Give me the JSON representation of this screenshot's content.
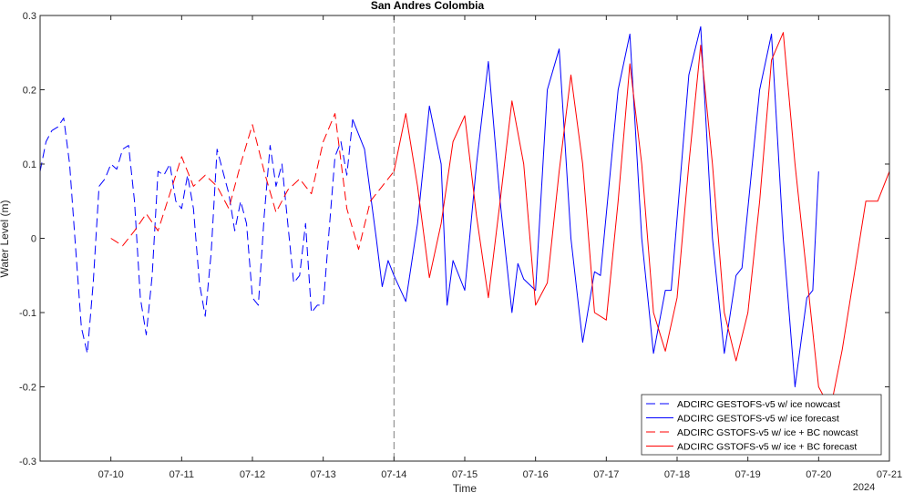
{
  "chart_data": {
    "type": "line",
    "title": "San Andres Colombia",
    "xlabel": "Time",
    "ylabel": "Water Level (m)",
    "year_label": "2024",
    "xlim": [
      "2024-07-09T00:00",
      "2024-07-21T00:00"
    ],
    "ylim": [
      -0.3,
      0.3
    ],
    "x_ticks": [
      "07-10",
      "07-11",
      "07-12",
      "07-13",
      "07-14",
      "07-15",
      "07-16",
      "07-17",
      "07-18",
      "07-19",
      "07-20",
      "07-21"
    ],
    "y_ticks": [
      "-0.3",
      "-0.2",
      "-0.1",
      "0",
      "0.1",
      "0.2",
      "0.3"
    ],
    "y_tick_values": [
      -0.3,
      -0.2,
      -0.1,
      0,
      0.1,
      0.2,
      0.3
    ],
    "grid": false,
    "legend_position": "bottom-right",
    "vertical_line_x": "2024-07-14T00:00",
    "colors": {
      "blue": "#0000ff",
      "red": "#ff0000",
      "axis": "#262626",
      "divider": "#7f7f7f"
    },
    "series": [
      {
        "name": "ADCIRC GESTOFS-v5 w/ ice nowcast",
        "color": "#0000ff",
        "style": "dashed",
        "points": [
          [
            "2024-07-09T00:00",
            0.09
          ],
          [
            "2024-07-09T02:00",
            0.13
          ],
          [
            "2024-07-09T04:00",
            0.145
          ],
          [
            "2024-07-09T06:00",
            0.15
          ],
          [
            "2024-07-09T08:00",
            0.162
          ],
          [
            "2024-07-09T10:00",
            0.1
          ],
          [
            "2024-07-09T12:00",
            -0.01
          ],
          [
            "2024-07-09T14:00",
            -0.12
          ],
          [
            "2024-07-09T16:00",
            -0.155
          ],
          [
            "2024-07-09T18:00",
            -0.06
          ],
          [
            "2024-07-09T20:00",
            0.07
          ],
          [
            "2024-07-09T22:00",
            0.08
          ],
          [
            "2024-07-10T00:00",
            0.1
          ],
          [
            "2024-07-10T02:00",
            0.093
          ],
          [
            "2024-07-10T04:00",
            0.12
          ],
          [
            "2024-07-10T06:00",
            0.125
          ],
          [
            "2024-07-10T08:00",
            0.05
          ],
          [
            "2024-07-10T10:00",
            -0.08
          ],
          [
            "2024-07-10T12:00",
            -0.13
          ],
          [
            "2024-07-10T14:00",
            -0.05
          ],
          [
            "2024-07-10T16:00",
            0.09
          ],
          [
            "2024-07-10T18:00",
            0.085
          ],
          [
            "2024-07-10T20:00",
            0.1
          ],
          [
            "2024-07-10T22:00",
            0.05
          ],
          [
            "2024-07-11T00:00",
            0.04
          ],
          [
            "2024-07-11T02:00",
            0.085
          ],
          [
            "2024-07-11T04:00",
            0.04
          ],
          [
            "2024-07-11T06:00",
            -0.06
          ],
          [
            "2024-07-11T08:00",
            -0.105
          ],
          [
            "2024-07-11T10:00",
            -0.02
          ],
          [
            "2024-07-11T12:00",
            0.12
          ],
          [
            "2024-07-11T14:00",
            0.09
          ],
          [
            "2024-07-11T16:00",
            0.06
          ],
          [
            "2024-07-11T18:00",
            0.01
          ],
          [
            "2024-07-11T20:00",
            0.05
          ],
          [
            "2024-07-11T22:00",
            0.02
          ],
          [
            "2024-07-12T00:00",
            -0.08
          ],
          [
            "2024-07-12T02:00",
            -0.09
          ],
          [
            "2024-07-12T04:00",
            0.03
          ],
          [
            "2024-07-12T06:00",
            0.125
          ],
          [
            "2024-07-12T08:00",
            0.07
          ],
          [
            "2024-07-12T10:00",
            0.1
          ],
          [
            "2024-07-12T12:00",
            0.02
          ],
          [
            "2024-07-12T14:00",
            -0.06
          ],
          [
            "2024-07-12T16:00",
            -0.05
          ],
          [
            "2024-07-12T18:00",
            0.02
          ],
          [
            "2024-07-12T20:00",
            -0.1
          ],
          [
            "2024-07-12T22:00",
            -0.09
          ],
          [
            "2024-07-13T00:00",
            -0.09
          ],
          [
            "2024-07-13T02:00",
            0.01
          ],
          [
            "2024-07-13T04:00",
            0.11
          ],
          [
            "2024-07-13T06:00",
            0.13
          ],
          [
            "2024-07-13T08:00",
            0.085
          ],
          [
            "2024-07-13T10:00",
            0.16
          ]
        ]
      },
      {
        "name": "ADCIRC GESTOFS-v5 w/ ice forecast",
        "color": "#0000ff",
        "style": "solid",
        "points": [
          [
            "2024-07-13T10:00",
            0.16
          ],
          [
            "2024-07-13T14:00",
            0.12
          ],
          [
            "2024-07-13T18:00",
            0.0
          ],
          [
            "2024-07-13T20:00",
            -0.065
          ],
          [
            "2024-07-13T22:00",
            -0.03
          ],
          [
            "2024-07-14T00:00",
            -0.05
          ],
          [
            "2024-07-14T04:00",
            -0.085
          ],
          [
            "2024-07-14T08:00",
            0.02
          ],
          [
            "2024-07-14T12:00",
            0.178
          ],
          [
            "2024-07-14T16:00",
            0.1
          ],
          [
            "2024-07-14T18:00",
            -0.09
          ],
          [
            "2024-07-14T20:00",
            -0.03
          ],
          [
            "2024-07-15T00:00",
            -0.07
          ],
          [
            "2024-07-15T04:00",
            0.1
          ],
          [
            "2024-07-15T08:00",
            0.238
          ],
          [
            "2024-07-15T12:00",
            0.05
          ],
          [
            "2024-07-15T16:00",
            -0.1
          ],
          [
            "2024-07-15T18:00",
            -0.034
          ],
          [
            "2024-07-15T20:00",
            -0.055
          ],
          [
            "2024-07-16T00:00",
            -0.07
          ],
          [
            "2024-07-16T04:00",
            0.2
          ],
          [
            "2024-07-16T08:00",
            0.255
          ],
          [
            "2024-07-16T12:00",
            0.0
          ],
          [
            "2024-07-16T16:00",
            -0.14
          ],
          [
            "2024-07-16T20:00",
            -0.045
          ],
          [
            "2024-07-16T22:00",
            -0.05
          ],
          [
            "2024-07-17T04:00",
            0.2
          ],
          [
            "2024-07-17T08:00",
            0.275
          ],
          [
            "2024-07-17T12:00",
            0.0
          ],
          [
            "2024-07-17T16:00",
            -0.155
          ],
          [
            "2024-07-17T20:00",
            -0.07
          ],
          [
            "2024-07-17T22:00",
            -0.07
          ],
          [
            "2024-07-18T04:00",
            0.22
          ],
          [
            "2024-07-18T08:00",
            0.285
          ],
          [
            "2024-07-18T12:00",
            0.0
          ],
          [
            "2024-07-18T16:00",
            -0.155
          ],
          [
            "2024-07-18T20:00",
            -0.05
          ],
          [
            "2024-07-18T22:00",
            -0.04
          ],
          [
            "2024-07-19T04:00",
            0.2
          ],
          [
            "2024-07-19T08:00",
            0.275
          ],
          [
            "2024-07-19T12:00",
            0.0
          ],
          [
            "2024-07-19T16:00",
            -0.2
          ],
          [
            "2024-07-19T20:00",
            -0.08
          ],
          [
            "2024-07-19T22:00",
            -0.07
          ],
          [
            "2024-07-20T00:00",
            0.09
          ]
        ]
      },
      {
        "name": "ADCIRC GSTOFS-v5 w/ ice + BC nowcast",
        "color": "#ff0000",
        "style": "dashed",
        "points": [
          [
            "2024-07-10T00:00",
            0.0
          ],
          [
            "2024-07-10T04:00",
            -0.01
          ],
          [
            "2024-07-10T08:00",
            0.01
          ],
          [
            "2024-07-10T12:00",
            0.033
          ],
          [
            "2024-07-10T16:00",
            0.01
          ],
          [
            "2024-07-10T20:00",
            0.06
          ],
          [
            "2024-07-11T00:00",
            0.11
          ],
          [
            "2024-07-11T04:00",
            0.07
          ],
          [
            "2024-07-11T08:00",
            0.085
          ],
          [
            "2024-07-11T12:00",
            0.07
          ],
          [
            "2024-07-11T16:00",
            0.04
          ],
          [
            "2024-07-11T20:00",
            0.1
          ],
          [
            "2024-07-12T00:00",
            0.153
          ],
          [
            "2024-07-12T04:00",
            0.09
          ],
          [
            "2024-07-12T08:00",
            0.035
          ],
          [
            "2024-07-12T12:00",
            0.065
          ],
          [
            "2024-07-12T16:00",
            0.08
          ],
          [
            "2024-07-12T20:00",
            0.06
          ],
          [
            "2024-07-13T00:00",
            0.13
          ],
          [
            "2024-07-13T04:00",
            0.168
          ],
          [
            "2024-07-13T08:00",
            0.04
          ],
          [
            "2024-07-13T12:00",
            -0.015
          ],
          [
            "2024-07-13T16:00",
            0.05
          ],
          [
            "2024-07-13T20:00",
            0.07
          ],
          [
            "2024-07-14T00:00",
            0.09
          ]
        ]
      },
      {
        "name": "ADCIRC GSTOFS-v5 w/ ice + BC forecast",
        "color": "#ff0000",
        "style": "solid",
        "points": [
          [
            "2024-07-14T00:00",
            0.09
          ],
          [
            "2024-07-14T04:00",
            0.168
          ],
          [
            "2024-07-14T08:00",
            0.07
          ],
          [
            "2024-07-14T12:00",
            -0.053
          ],
          [
            "2024-07-14T16:00",
            0.02
          ],
          [
            "2024-07-14T20:00",
            0.13
          ],
          [
            "2024-07-15T00:00",
            0.165
          ],
          [
            "2024-07-15T04:00",
            0.03
          ],
          [
            "2024-07-15T08:00",
            -0.08
          ],
          [
            "2024-07-15T12:00",
            0.05
          ],
          [
            "2024-07-15T16:00",
            0.185
          ],
          [
            "2024-07-15T20:00",
            0.1
          ],
          [
            "2024-07-16T00:00",
            -0.09
          ],
          [
            "2024-07-16T04:00",
            -0.06
          ],
          [
            "2024-07-16T08:00",
            0.09
          ],
          [
            "2024-07-16T12:00",
            0.22
          ],
          [
            "2024-07-16T16:00",
            0.1
          ],
          [
            "2024-07-16T20:00",
            -0.1
          ],
          [
            "2024-07-17T00:00",
            -0.11
          ],
          [
            "2024-07-17T04:00",
            0.05
          ],
          [
            "2024-07-17T08:00",
            0.235
          ],
          [
            "2024-07-17T12:00",
            0.1
          ],
          [
            "2024-07-17T16:00",
            -0.1
          ],
          [
            "2024-07-17T20:00",
            -0.152
          ],
          [
            "2024-07-18T00:00",
            -0.08
          ],
          [
            "2024-07-18T04:00",
            0.1
          ],
          [
            "2024-07-18T08:00",
            0.26
          ],
          [
            "2024-07-18T12:00",
            0.1
          ],
          [
            "2024-07-18T16:00",
            -0.1
          ],
          [
            "2024-07-18T20:00",
            -0.165
          ],
          [
            "2024-07-19T00:00",
            -0.1
          ],
          [
            "2024-07-19T04:00",
            0.05
          ],
          [
            "2024-07-19T08:00",
            0.24
          ],
          [
            "2024-07-19T12:00",
            0.277
          ],
          [
            "2024-07-19T16:00",
            0.1
          ],
          [
            "2024-07-19T20:00",
            -0.05
          ],
          [
            "2024-07-20T00:00",
            -0.2
          ],
          [
            "2024-07-20T04:00",
            -0.23
          ],
          [
            "2024-07-20T08:00",
            -0.15
          ],
          [
            "2024-07-20T12:00",
            -0.05
          ],
          [
            "2024-07-20T16:00",
            0.05
          ],
          [
            "2024-07-20T20:00",
            0.05
          ],
          [
            "2024-07-21T00:00",
            0.09
          ]
        ]
      }
    ]
  }
}
